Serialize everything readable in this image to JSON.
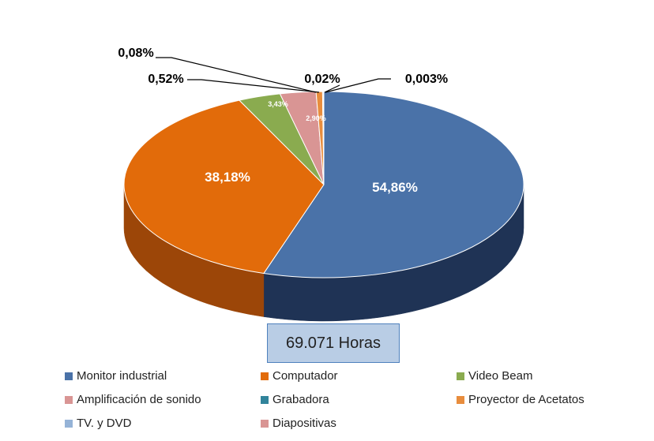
{
  "chart_data": {
    "type": "pie",
    "title": "",
    "total_label": "69.071 Horas",
    "slices": [
      {
        "name": "Monitor industrial",
        "value": 54.86,
        "label": "54,86%",
        "color": "#4a72a8",
        "side_color": "#1f3355"
      },
      {
        "name": "Computador",
        "value": 38.18,
        "label": "38,18%",
        "color": "#e26b0a",
        "side_color": "#9c4608"
      },
      {
        "name": "Video Beam",
        "value": 3.43,
        "label": "3,43%",
        "color": "#8aab4f",
        "side_color": "#5a7232"
      },
      {
        "name": "Amplificación de sonido",
        "value": 2.9,
        "label": "2,90%",
        "color": "#d99594",
        "side_color": "#9a6564"
      },
      {
        "name": "Grabadora",
        "value": 0.02,
        "label": "0,02%",
        "color": "#31849b",
        "side_color": "#1d5563"
      },
      {
        "name": "Proyector de Acetatos",
        "value": 0.52,
        "label": "0,52%",
        "color": "#e88d3d",
        "side_color": "#a55f22"
      },
      {
        "name": "TV. y DVD",
        "value": 0.08,
        "label": "0,08%",
        "color": "#95b3d7",
        "side_color": "#5f7a9a"
      },
      {
        "name": "Diapositivas",
        "value": 0.003,
        "label": "0,003%",
        "color": "#d99594",
        "side_color": "#9a6564"
      }
    ],
    "legend_placement": "bottom"
  }
}
